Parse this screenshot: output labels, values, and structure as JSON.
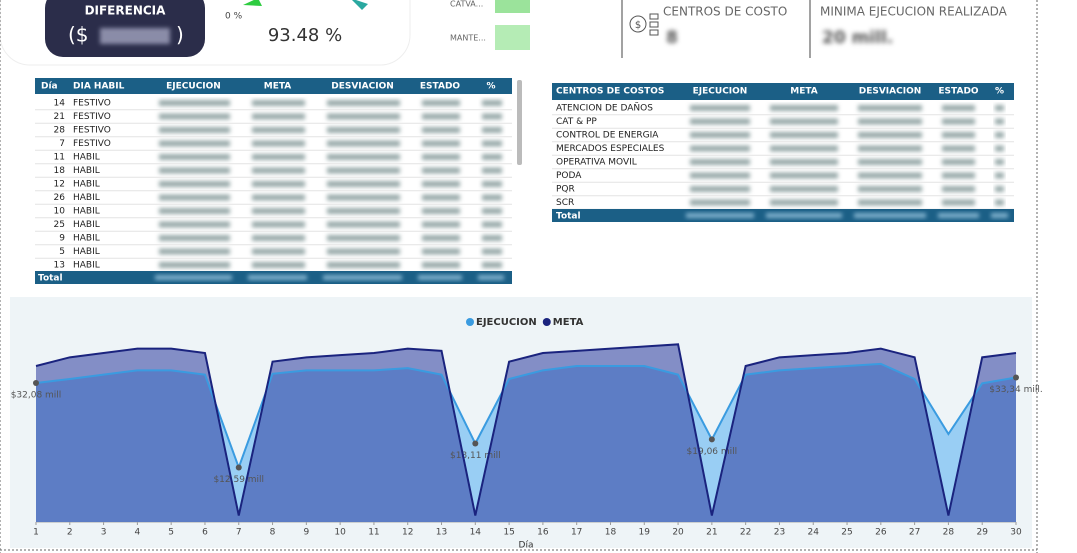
{
  "kpis": {
    "difference_label": "DIFERENCIA",
    "difference_prefix": "($",
    "difference_suffix": ")",
    "gauge_min": "0 %",
    "gauge_value": "93.48 %"
  },
  "bars": [
    {
      "label": "CATVA..."
    },
    {
      "label": "MANTE..."
    }
  ],
  "cards": [
    {
      "title": "CENTROS DE COSTO",
      "value": "8"
    },
    {
      "title": "MINIMA EJECUCION REALIZADA",
      "value": "20 mill."
    }
  ],
  "day_table": {
    "columns": [
      "Día",
      "DIA HABIL",
      "EJECUCION",
      "META",
      "DESVIACION",
      "ESTADO",
      "%"
    ],
    "rows": [
      [
        14,
        "FESTIVO"
      ],
      [
        21,
        "FESTIVO"
      ],
      [
        28,
        "FESTIVO"
      ],
      [
        7,
        "FESTIVO"
      ],
      [
        11,
        "HABIL"
      ],
      [
        18,
        "HABIL"
      ],
      [
        12,
        "HABIL"
      ],
      [
        26,
        "HABIL"
      ],
      [
        10,
        "HABIL"
      ],
      [
        25,
        "HABIL"
      ],
      [
        9,
        "HABIL"
      ],
      [
        5,
        "HABIL"
      ],
      [
        13,
        "HABIL"
      ]
    ],
    "total": "Total"
  },
  "cost_table": {
    "columns": [
      "CENTROS DE COSTOS",
      "EJECUCION",
      "META",
      "DESVIACION",
      "ESTADO",
      "%"
    ],
    "rows": [
      "ATENCION DE DAÑOS",
      "CAT & PP",
      "CONTROL DE ENERGIA",
      "MERCADOS ESPECIALES",
      "OPERATIVA MOVIL",
      "PODA",
      "PQR",
      "SCR"
    ],
    "total": "Total"
  },
  "chart_data": {
    "type": "area",
    "x_label": "Día",
    "x": [
      1,
      2,
      3,
      4,
      5,
      6,
      7,
      8,
      9,
      10,
      11,
      12,
      13,
      14,
      15,
      16,
      17,
      18,
      19,
      20,
      21,
      22,
      23,
      24,
      25,
      26,
      27,
      28,
      29,
      30
    ],
    "xlim": [
      1,
      30
    ],
    "xticks": [
      1,
      2,
      3,
      4,
      5,
      6,
      7,
      8,
      9,
      10,
      11,
      12,
      13,
      14,
      15,
      16,
      17,
      18,
      19,
      20,
      21,
      22,
      23,
      24,
      25,
      26,
      27,
      28,
      29,
      30
    ],
    "ylim": [
      0,
      42
    ],
    "series": [
      {
        "name": "EJECUCION",
        "color": "#3a9be0",
        "values": [
          32.08,
          33,
          34,
          35,
          35,
          34,
          12.59,
          34.2,
          35,
          35,
          35,
          35.5,
          34,
          18.11,
          33,
          35,
          36,
          36,
          36,
          34,
          19.06,
          34,
          35,
          35.5,
          36,
          36.5,
          33,
          20.3,
          32,
          33.34
        ],
        "value_labels": [
          "$32,08 mill",
          null,
          null,
          null,
          null,
          null,
          "$12,59 mill",
          null,
          null,
          null,
          null,
          null,
          null,
          "$18,11 mill",
          null,
          null,
          null,
          null,
          null,
          null,
          "$19,06 mill",
          null,
          null,
          null,
          null,
          null,
          null,
          null,
          null,
          "$33,34 mill."
        ]
      },
      {
        "name": "META",
        "color": "#1a237e",
        "values": [
          36,
          38,
          39,
          40,
          40,
          39,
          1.5,
          37,
          38,
          38.5,
          39,
          40,
          39.5,
          1.5,
          37,
          39,
          39.5,
          40,
          40.5,
          41,
          1.5,
          36,
          38,
          38.5,
          39,
          40,
          38,
          1.5,
          38,
          39
        ]
      }
    ]
  }
}
